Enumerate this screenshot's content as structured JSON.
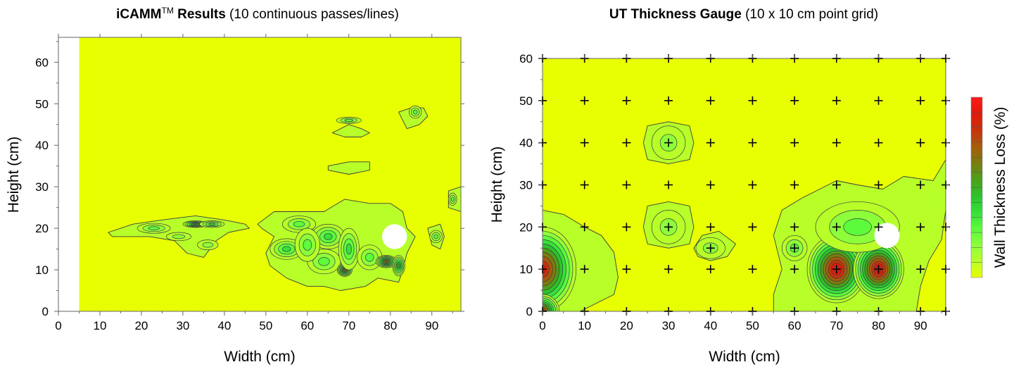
{
  "colors": {
    "background": "#e7ff00",
    "scale": [
      "#e7ff00",
      "#b8ff2a",
      "#8dff3a",
      "#5cfb3b",
      "#37e03a",
      "#2cc22c",
      "#4e9e1a",
      "#7d7a10",
      "#a85a0c",
      "#c8320b",
      "#e01a0a",
      "#ff1a1a"
    ],
    "contour_line": "#3c3c3c",
    "hole": "#ffffff"
  },
  "chart_data": [
    {
      "type": "heatmap",
      "title_bold": "iCAMM",
      "title_superscript": "TM",
      "title_bold_2": " Results",
      "title_rest": " (10 continuous passes/lines)",
      "xlabel": "Width (cm)",
      "ylabel": "Height (cm)",
      "xlim": [
        0,
        97
      ],
      "ylim": [
        0,
        66
      ],
      "x_ticks": [
        0,
        10,
        20,
        30,
        40,
        50,
        60,
        70,
        80,
        90
      ],
      "y_ticks": [
        0,
        10,
        20,
        30,
        40,
        50,
        60
      ],
      "data_xlim": [
        5,
        97
      ],
      "hole": {
        "x": 81,
        "y": 18,
        "r": 3
      },
      "loss_spots": [
        {
          "x": 33,
          "y": 21,
          "level": 6,
          "rx": 3.0,
          "ry": 0.8
        },
        {
          "x": 37,
          "y": 21,
          "level": 4,
          "rx": 3.0,
          "ry": 0.8
        },
        {
          "x": 23,
          "y": 20,
          "level": 3,
          "rx": 4.0,
          "ry": 1.2
        },
        {
          "x": 29,
          "y": 18,
          "level": 2,
          "rx": 3.0,
          "ry": 1.0
        },
        {
          "x": 36,
          "y": 16,
          "level": 2,
          "rx": 2.5,
          "ry": 1.2
        },
        {
          "x": 55,
          "y": 15,
          "level": 4,
          "rx": 4.0,
          "ry": 2.5
        },
        {
          "x": 58,
          "y": 21,
          "level": 3,
          "rx": 4.0,
          "ry": 2.0
        },
        {
          "x": 65,
          "y": 18,
          "level": 4,
          "rx": 4.0,
          "ry": 3.0
        },
        {
          "x": 64,
          "y": 12,
          "level": 3,
          "rx": 4.0,
          "ry": 3.0
        },
        {
          "x": 69,
          "y": 10,
          "level": 8,
          "rx": 1.8,
          "ry": 1.6
        },
        {
          "x": 70,
          "y": 15,
          "level": 4,
          "rx": 2.5,
          "ry": 5.0
        },
        {
          "x": 75,
          "y": 13,
          "level": 3,
          "rx": 3.0,
          "ry": 3.0
        },
        {
          "x": 79,
          "y": 12,
          "level": 8,
          "rx": 2.5,
          "ry": 1.5
        },
        {
          "x": 82,
          "y": 11,
          "level": 6,
          "rx": 1.5,
          "ry": 2.5
        },
        {
          "x": 60,
          "y": 16,
          "level": 3,
          "rx": 3.0,
          "ry": 4.0
        },
        {
          "x": 70,
          "y": 46,
          "level": 3,
          "rx": 3.0,
          "ry": 0.8
        },
        {
          "x": 86,
          "y": 48,
          "level": 3,
          "rx": 1.5,
          "ry": 1.5
        },
        {
          "x": 91,
          "y": 18,
          "level": 3,
          "rx": 1.5,
          "ry": 1.5
        },
        {
          "x": 95,
          "y": 27,
          "level": 3,
          "rx": 1.0,
          "ry": 1.5
        }
      ],
      "loss_regions": [
        {
          "level": 1,
          "points": [
            [
              12,
              19
            ],
            [
              18,
              21
            ],
            [
              25,
              22
            ],
            [
              33,
              23
            ],
            [
              40,
              22
            ],
            [
              45,
              21
            ],
            [
              46,
              20
            ],
            [
              41,
              19
            ],
            [
              38,
              17
            ],
            [
              35,
              13
            ],
            [
              31,
              14
            ],
            [
              28,
              17
            ],
            [
              22,
              18
            ],
            [
              13,
              18
            ]
          ]
        },
        {
          "level": 1,
          "points": [
            [
              48,
              21
            ],
            [
              52,
              24
            ],
            [
              58,
              24
            ],
            [
              64,
              24
            ],
            [
              69,
              27
            ],
            [
              75,
              26
            ],
            [
              80,
              26
            ],
            [
              83,
              24
            ],
            [
              84,
              20
            ],
            [
              86,
              18
            ],
            [
              84,
              14
            ],
            [
              83,
              10
            ],
            [
              82,
              7
            ],
            [
              77,
              8
            ],
            [
              74,
              6
            ],
            [
              68,
              5
            ],
            [
              64,
              6
            ],
            [
              60,
              6
            ],
            [
              55,
              8
            ],
            [
              51,
              11
            ],
            [
              50,
              14
            ],
            [
              52,
              18
            ],
            [
              49,
              20
            ]
          ]
        },
        {
          "level": 1,
          "points": [
            [
              66,
              43
            ],
            [
              70,
              45
            ],
            [
              73,
              44
            ],
            [
              75,
              43
            ],
            [
              73,
              42
            ],
            [
              69,
              42
            ]
          ]
        },
        {
          "level": 1,
          "points": [
            [
              82,
              48
            ],
            [
              85,
              49
            ],
            [
              88,
              49
            ],
            [
              89,
              47
            ],
            [
              87,
              45
            ],
            [
              84,
              44
            ],
            [
              83,
              46
            ]
          ]
        },
        {
          "level": 1,
          "points": [
            [
              65,
              35
            ],
            [
              70,
              36
            ],
            [
              75,
              36
            ],
            [
              75,
              34
            ],
            [
              70,
              33
            ],
            [
              65,
              34
            ]
          ]
        },
        {
          "level": 1,
          "points": [
            [
              89,
              20
            ],
            [
              92,
              21
            ],
            [
              93,
              18
            ],
            [
              92,
              15
            ],
            [
              90,
              16
            ]
          ]
        },
        {
          "level": 1,
          "points": [
            [
              94,
              29
            ],
            [
              97,
              30
            ],
            [
              97,
              24
            ],
            [
              94,
              25
            ]
          ]
        }
      ]
    },
    {
      "type": "heatmap",
      "title_bold": "UT Thickness Gauge",
      "title_rest": " (10 x 10 cm point grid)",
      "xlabel": "Width (cm)",
      "ylabel": "Height (cm)",
      "xlim": [
        0,
        96
      ],
      "ylim": [
        0,
        60
      ],
      "x_ticks": [
        0,
        10,
        20,
        30,
        40,
        50,
        60,
        70,
        80,
        90
      ],
      "y_ticks": [
        0,
        10,
        20,
        30,
        40,
        50,
        60
      ],
      "colorbar_label": "Wall Thickness Loss (%)",
      "hole": {
        "x": 82,
        "y": 18,
        "r": 3
      },
      "grid_points_x": [
        0,
        10,
        20,
        30,
        40,
        50,
        60,
        70,
        80,
        90,
        96
      ],
      "grid_points_y": [
        0,
        10,
        20,
        30,
        40,
        50,
        60
      ],
      "extra_points": [
        [
          40,
          15
        ],
        [
          60,
          15
        ]
      ],
      "loss_spots": [
        {
          "x": 30,
          "y": 40,
          "level": 2,
          "rx": 4.0,
          "ry": 4.0
        },
        {
          "x": 30,
          "y": 20,
          "level": 2,
          "rx": 4.0,
          "ry": 4.0
        },
        {
          "x": 40,
          "y": 15,
          "level": 2,
          "rx": 3.5,
          "ry": 2.5
        },
        {
          "x": 70,
          "y": 10,
          "level": 11,
          "rx": 7.0,
          "ry": 8.0
        },
        {
          "x": 80,
          "y": 10,
          "level": 11,
          "rx": 6.0,
          "ry": 7.0
        },
        {
          "x": 0,
          "y": 10,
          "level": 10,
          "rx": 8.0,
          "ry": 10.0
        },
        {
          "x": 0,
          "y": 0,
          "level": 9,
          "rx": 4.0,
          "ry": 4.0
        },
        {
          "x": 60,
          "y": 15,
          "level": 3,
          "rx": 3.0,
          "ry": 3.0
        },
        {
          "x": 75,
          "y": 20,
          "level": 3,
          "rx": 10.0,
          "ry": 6.0
        }
      ],
      "loss_regions": [
        {
          "level": 1,
          "points": [
            [
              0,
              24
            ],
            [
              5,
              23
            ],
            [
              10,
              20
            ],
            [
              14,
              18
            ],
            [
              17,
              14
            ],
            [
              18,
              8
            ],
            [
              17,
              4
            ],
            [
              13,
              2
            ],
            [
              9,
              0
            ],
            [
              0,
              0
            ]
          ]
        },
        {
          "level": 1,
          "points": [
            [
              24,
              40
            ],
            [
              25,
              44
            ],
            [
              30,
              45
            ],
            [
              35,
              44
            ],
            [
              36,
              40
            ],
            [
              35,
              36
            ],
            [
              30,
              35
            ],
            [
              25,
              36
            ]
          ]
        },
        {
          "level": 1,
          "points": [
            [
              24,
              20
            ],
            [
              25,
              25
            ],
            [
              30,
              26
            ],
            [
              35,
              25
            ],
            [
              36,
              20
            ],
            [
              35,
              16
            ],
            [
              30,
              15
            ],
            [
              25,
              16
            ]
          ]
        },
        {
          "level": 1,
          "points": [
            [
              36,
              15
            ],
            [
              38,
              18
            ],
            [
              42,
              19
            ],
            [
              46,
              16
            ],
            [
              44,
              13
            ],
            [
              40,
              12
            ],
            [
              37,
              13
            ]
          ]
        },
        {
          "level": 1,
          "points": [
            [
              55,
              18
            ],
            [
              57,
              24
            ],
            [
              62,
              27
            ],
            [
              66,
              29
            ],
            [
              70,
              31
            ],
            [
              75,
              30
            ],
            [
              81,
              29
            ],
            [
              86,
              32
            ],
            [
              93,
              31
            ],
            [
              96,
              36
            ],
            [
              96,
              24
            ],
            [
              95,
              17
            ],
            [
              92,
              12
            ],
            [
              90,
              6
            ],
            [
              89,
              0
            ],
            [
              55,
              0
            ],
            [
              55,
              4
            ],
            [
              57,
              10
            ],
            [
              56,
              14
            ]
          ]
        }
      ]
    }
  ]
}
